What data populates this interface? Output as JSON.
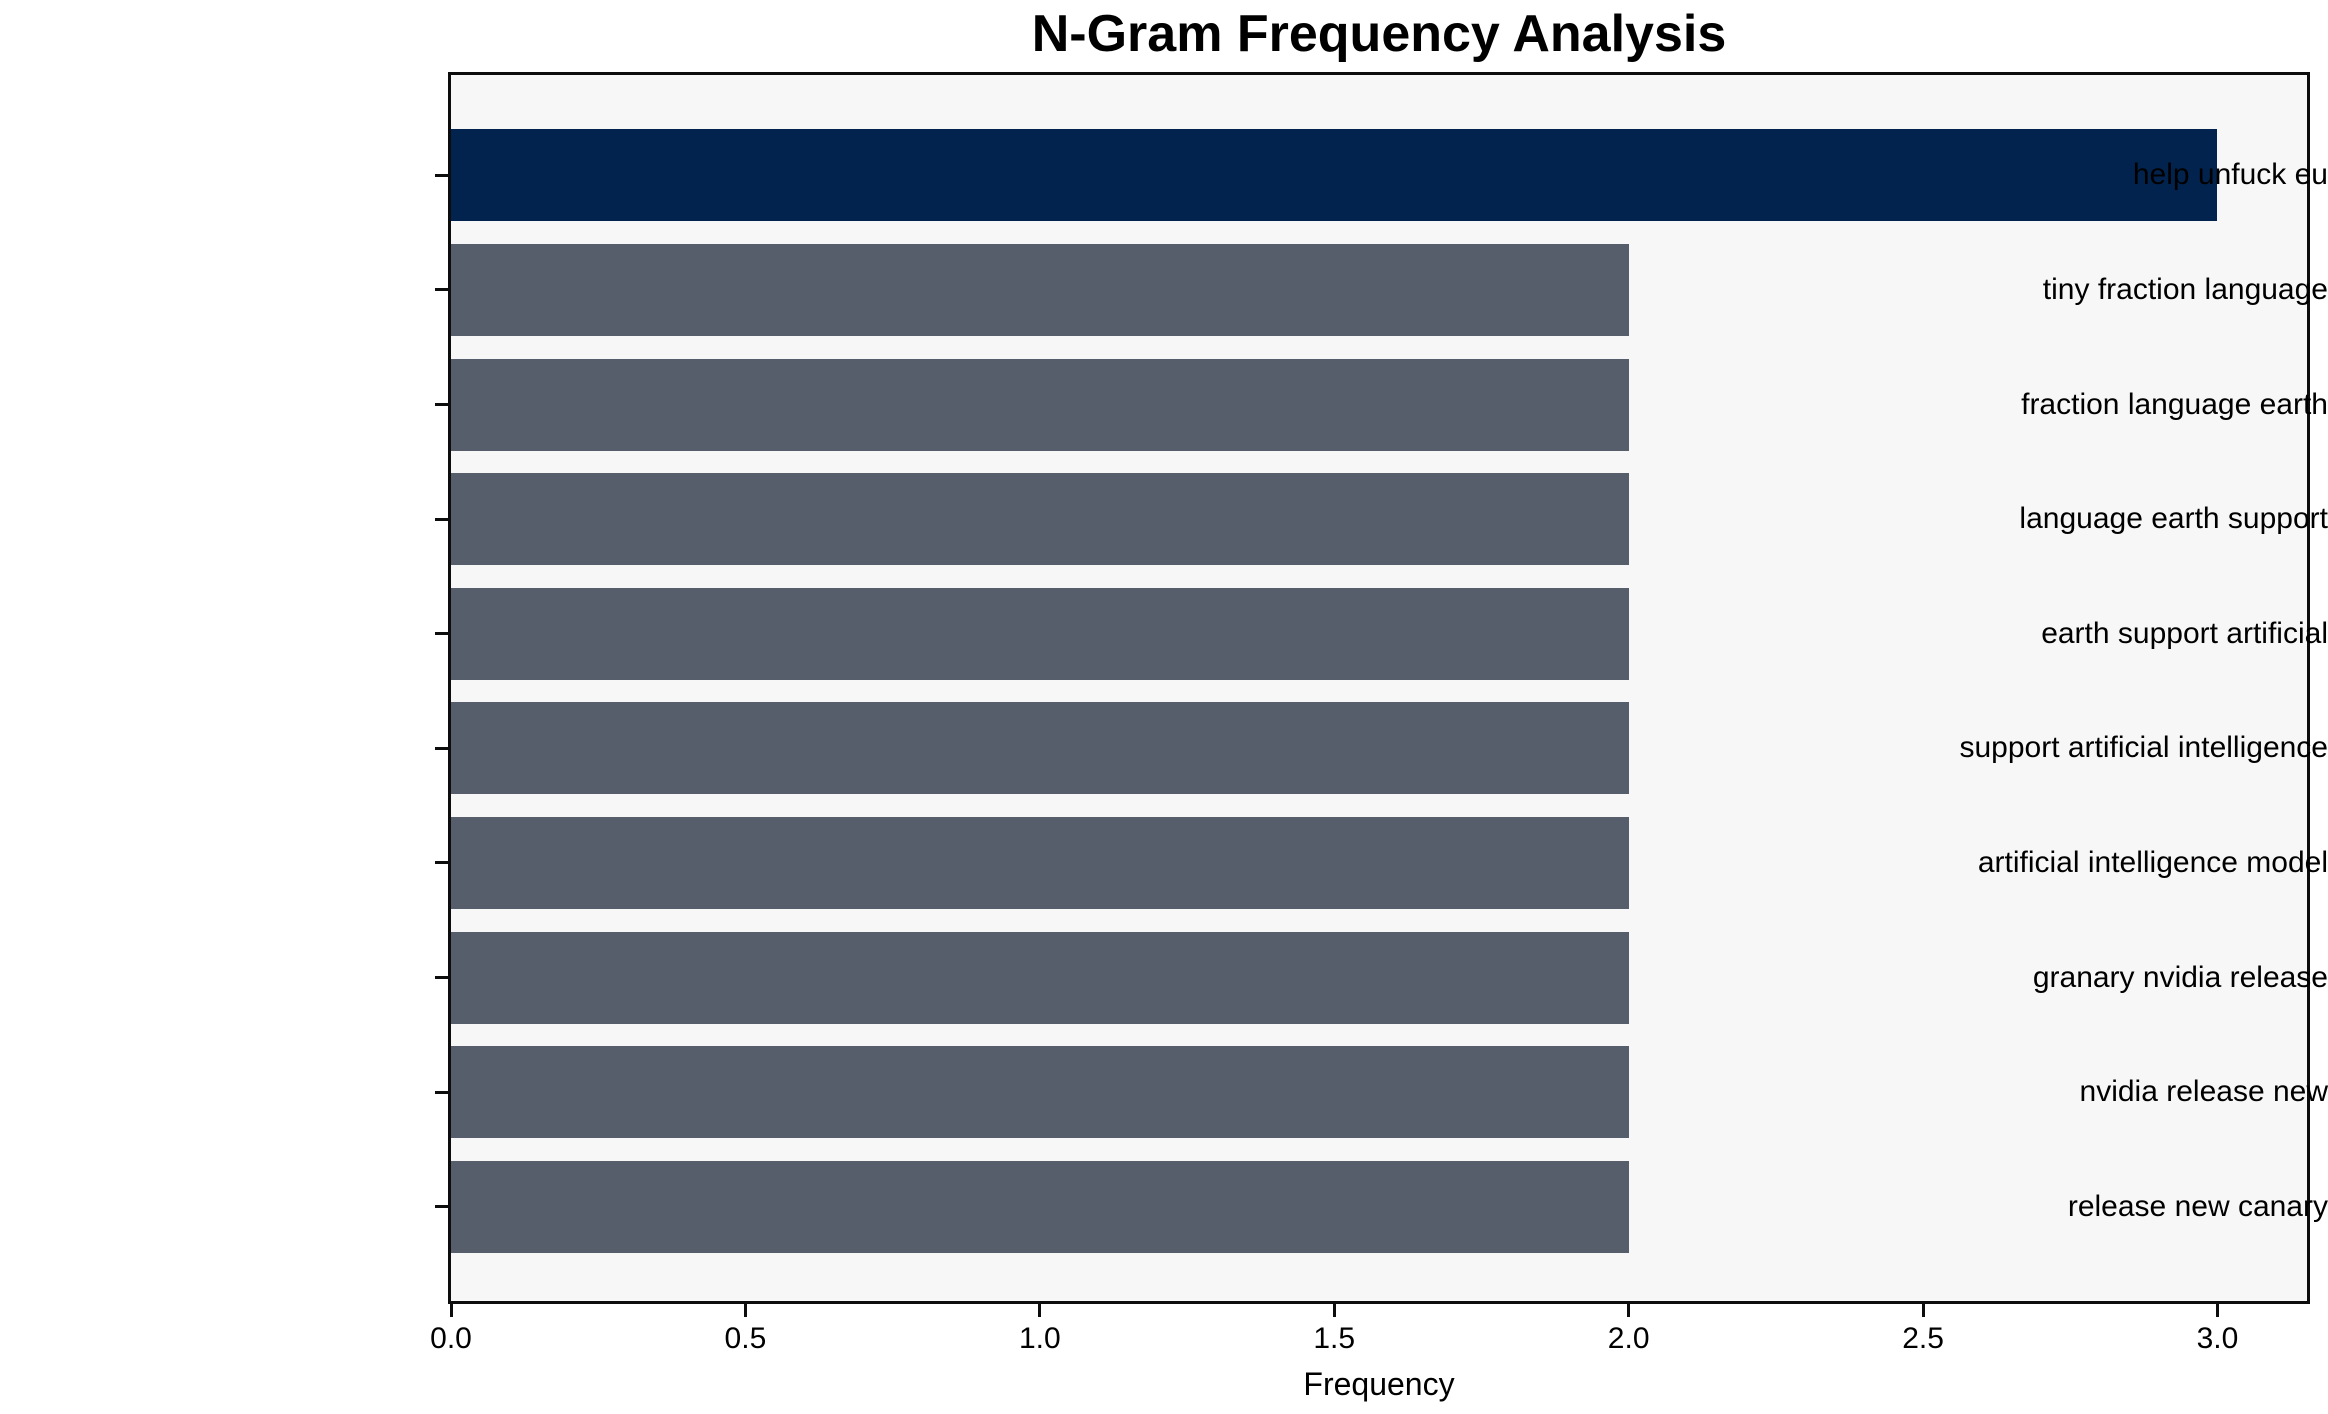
{
  "chart_data": {
    "type": "bar",
    "orientation": "horizontal",
    "title": "N-Gram Frequency Analysis",
    "xlabel": "Frequency",
    "ylabel": "",
    "categories": [
      "help unfuck eu",
      "tiny fraction language",
      "fraction language earth",
      "language earth support",
      "earth support artificial",
      "support artificial intelligence",
      "artificial intelligence model",
      "granary nvidia release",
      "nvidia release new",
      "release new canary"
    ],
    "values": [
      3,
      2,
      2,
      2,
      2,
      2,
      2,
      2,
      2,
      2
    ],
    "bar_colors": [
      "#02234E",
      "#565D6B",
      "#565D6B",
      "#565D6B",
      "#565D6B",
      "#565D6B",
      "#565D6B",
      "#565D6B",
      "#565D6B",
      "#565D6B"
    ],
    "x_ticks": [
      {
        "value": 0.0,
        "label": "0.0"
      },
      {
        "value": 0.5,
        "label": "0.5"
      },
      {
        "value": 1.0,
        "label": "1.0"
      },
      {
        "value": 1.5,
        "label": "1.5"
      },
      {
        "value": 2.0,
        "label": "2.0"
      },
      {
        "value": 2.5,
        "label": "2.5"
      },
      {
        "value": 3.0,
        "label": "3.0"
      }
    ],
    "xlim": [
      0,
      3.152
    ],
    "grid": false,
    "legend": null,
    "colors": {
      "highlight_bar": "#02234E",
      "default_bar": "#565D6B",
      "plot_background": "#F7F7F8",
      "figure_background": "#FFFFFF",
      "axis_spine": "#0D0D0D",
      "text": "#000000"
    }
  }
}
